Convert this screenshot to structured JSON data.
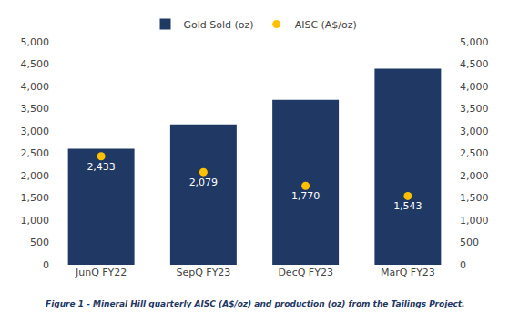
{
  "chart_data": {
    "type": "bar",
    "categories": [
      "JunQ FY22",
      "SepQ FY23",
      "DecQ FY23",
      "MarQ FY23"
    ],
    "series": [
      {
        "name": "Gold Sold (oz)",
        "type": "bar",
        "color": "#1f3864",
        "values": [
          2600,
          3150,
          3700,
          4400
        ]
      },
      {
        "name": "AISC (A$/oz)",
        "type": "scatter",
        "color": "#FFC000",
        "marker": "circle",
        "values": [
          2433,
          2079,
          1770,
          1543
        ],
        "value_labels": [
          "2,433",
          "2,079",
          "1,770",
          "1,543"
        ],
        "data_labels": true
      }
    ],
    "ylim": [
      0,
      5000
    ],
    "yticks": [
      0,
      500,
      {
        "value": 1000,
        "label": "1,000"
      },
      {
        "value": 1500,
        "label": "1,500"
      },
      {
        "value": 2000,
        "label": "2,000"
      },
      {
        "value": 2500,
        "label": "2,500"
      },
      {
        "value": 3000,
        "label": "3,000"
      },
      {
        "value": 3500,
        "label": "3,500"
      },
      {
        "value": 4000,
        "label": "4,000"
      },
      {
        "value": 4500,
        "label": "4,500"
      },
      {
        "value": 5000,
        "label": "5,000"
      }
    ],
    "y2lim": [
      0,
      5000
    ],
    "y2ticks": [
      0,
      500,
      {
        "value": 1000,
        "label": "1,000"
      },
      {
        "value": 1500,
        "label": "1,500"
      },
      {
        "value": 2000,
        "label": "2,000"
      },
      {
        "value": 2500,
        "label": "2,500"
      },
      {
        "value": 3000,
        "label": "3,000"
      },
      {
        "value": 3500,
        "label": "3,500"
      },
      {
        "value": 4000,
        "label": "4,000"
      },
      {
        "value": 4500,
        "label": "4,500"
      },
      {
        "value": 5000,
        "label": "5,000"
      }
    ],
    "grid": false,
    "legend": "top",
    "caption": "Figure 1 - Mineral Hill quarterly AISC (A$/oz) and production (oz) from the Tailings Project."
  }
}
